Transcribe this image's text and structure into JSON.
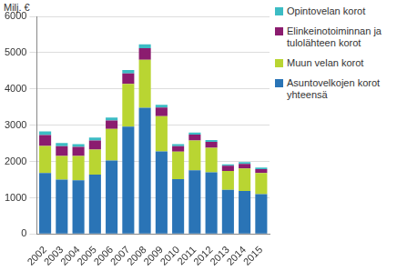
{
  "chart_data": {
    "type": "bar",
    "stacked": true,
    "grid": true,
    "legend": "right",
    "y_label": "Milj. €",
    "categories": [
      "2002",
      "2003",
      "2004",
      "2005",
      "2006",
      "2007",
      "2008",
      "2009",
      "2010",
      "2011",
      "2012",
      "2013",
      "2014",
      "2015"
    ],
    "series": [
      {
        "name": "Asuntovelkojen korot yhteensä",
        "color": "#2a74b6",
        "values": [
          1680,
          1500,
          1480,
          1640,
          2030,
          2960,
          3480,
          2280,
          1510,
          1760,
          1700,
          1220,
          1190,
          1100
        ]
      },
      {
        "name": "Muun velan korot",
        "color": "#b9d532",
        "values": [
          750,
          650,
          670,
          690,
          870,
          1180,
          1320,
          970,
          760,
          820,
          680,
          520,
          620,
          580
        ]
      },
      {
        "name": "Elinkeinotoiminnan ja tulolähteen korot",
        "color": "#8b1c6f",
        "values": [
          300,
          270,
          250,
          250,
          230,
          290,
          320,
          240,
          150,
          160,
          160,
          140,
          120,
          110
        ]
      },
      {
        "name": "Opintovelan korot",
        "color": "#3cbcc4",
        "values": [
          100,
          90,
          80,
          80,
          80,
          90,
          110,
          70,
          60,
          60,
          50,
          40,
          50,
          40
        ]
      }
    ],
    "ylim": [
      0,
      6000
    ],
    "yticks": [
      0,
      1000,
      2000,
      3000,
      4000,
      5000,
      6000
    ]
  }
}
